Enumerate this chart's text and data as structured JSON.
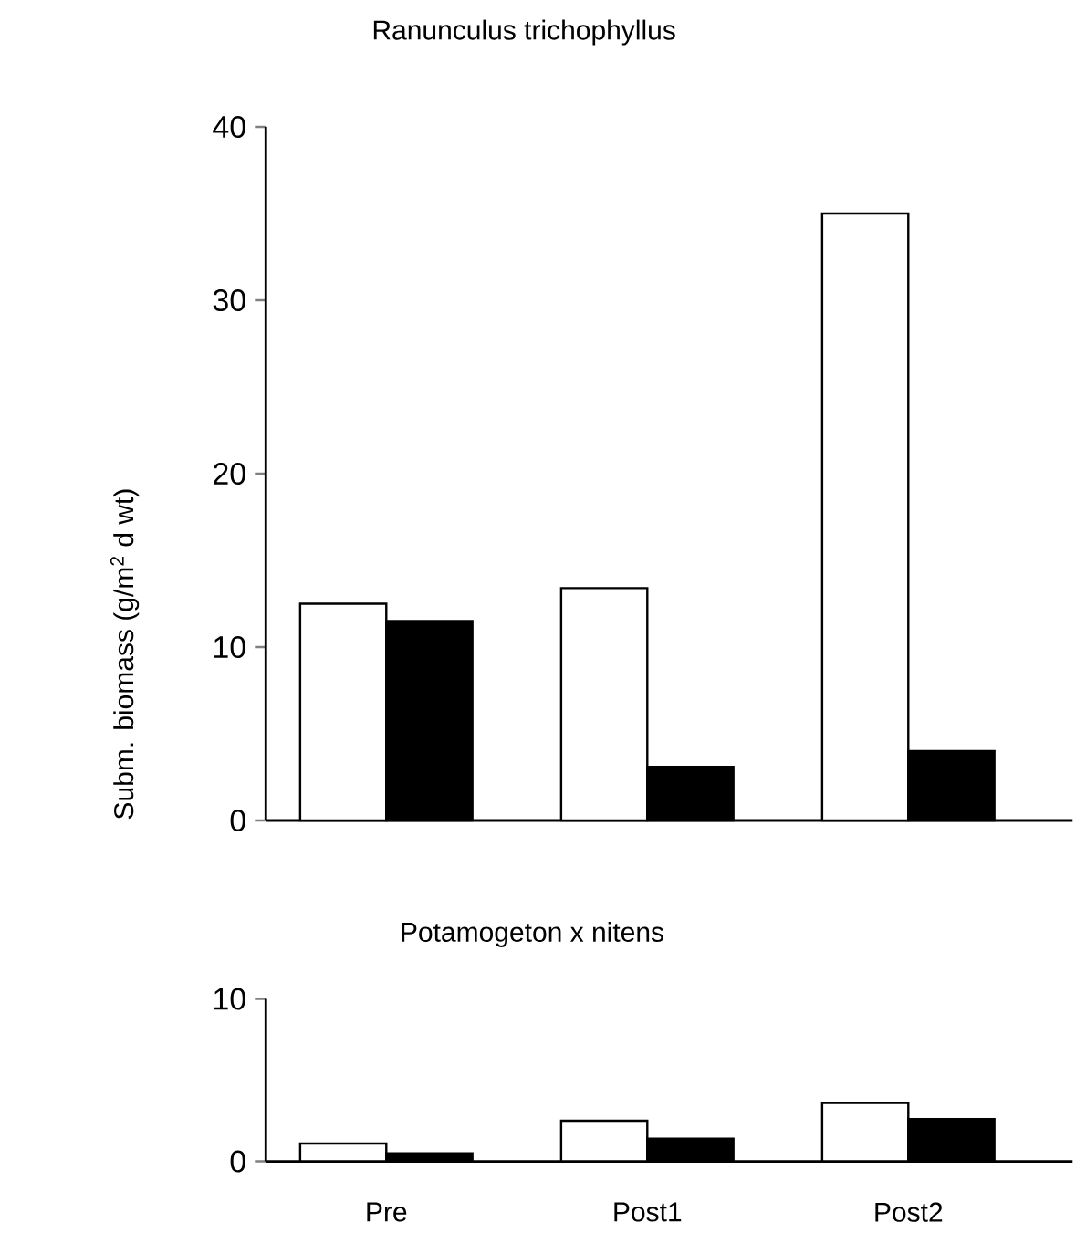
{
  "chart_data": [
    {
      "type": "bar",
      "title": "Ranunculus trichophyllus",
      "ylabel": "Subm. biomass (g/m$^{2}$ d wt)",
      "categories": [
        null,
        null,
        null
      ],
      "series": [
        {
          "color": "#ffffff",
          "values": [
            12.5,
            13.4,
            35
          ]
        },
        {
          "color": "#000000",
          "values": [
            11.5,
            3.1,
            4.0
          ]
        }
      ],
      "ylim": [
        0,
        40
      ],
      "yticks": [
        0,
        10,
        20,
        30,
        40
      ],
      "tick_labels": "y"
    },
    {
      "type": "bar",
      "title": "Potamogeton x nitens",
      "categories": [
        "Pre",
        "Post1",
        "Post2"
      ],
      "series": [
        {
          "color": "#ffffff",
          "values": [
            1.1,
            2.5,
            3.6
          ]
        },
        {
          "color": "#000000",
          "values": [
            0.5,
            1.4,
            2.6
          ]
        }
      ],
      "ylim": [
        0,
        10
      ],
      "yticks": [
        0,
        10
      ]
    }
  ]
}
